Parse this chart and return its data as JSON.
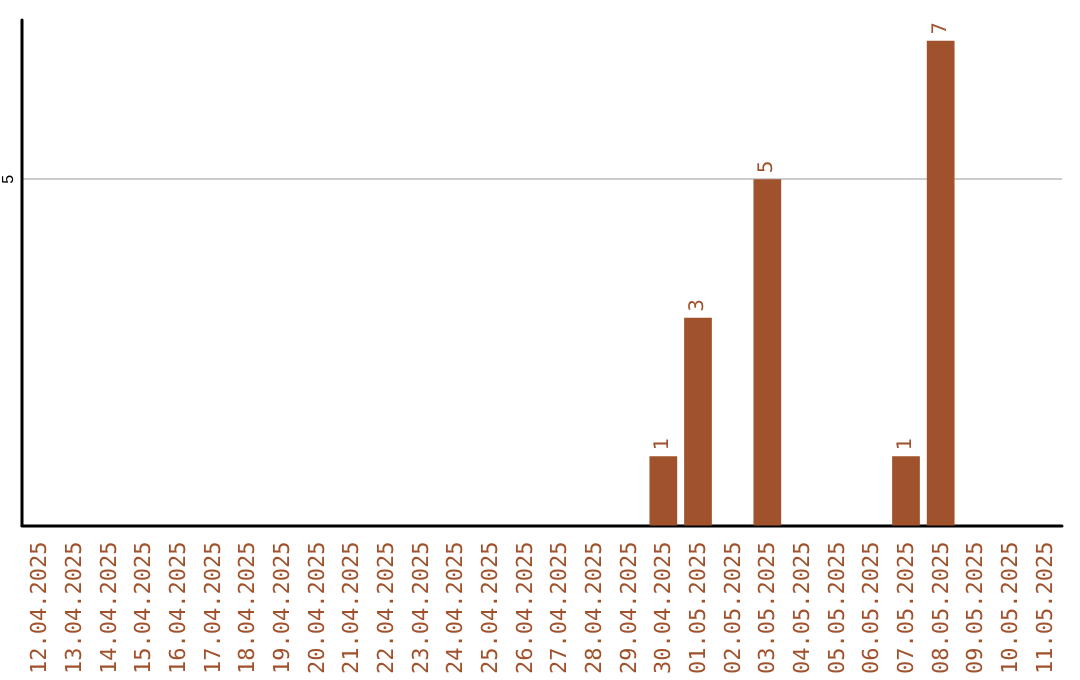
{
  "chart_data": {
    "type": "bar",
    "categories": [
      "12.04.2025",
      "13.04.2025",
      "14.04.2025",
      "15.04.2025",
      "16.04.2025",
      "17.04.2025",
      "18.04.2025",
      "19.04.2025",
      "20.04.2025",
      "21.04.2025",
      "22.04.2025",
      "23.04.2025",
      "24.04.2025",
      "25.04.2025",
      "26.04.2025",
      "27.04.2025",
      "28.04.2025",
      "29.04.2025",
      "30.04.2025",
      "01.05.2025",
      "02.05.2025",
      "03.05.2025",
      "04.05.2025",
      "05.05.2025",
      "06.05.2025",
      "07.05.2025",
      "08.05.2025",
      "09.05.2025",
      "10.05.2025",
      "11.05.2025"
    ],
    "values": [
      null,
      null,
      null,
      null,
      null,
      null,
      null,
      null,
      null,
      null,
      null,
      null,
      null,
      null,
      null,
      null,
      null,
      null,
      1,
      3,
      null,
      5,
      null,
      null,
      null,
      1,
      7,
      null,
      null,
      null
    ],
    "data_labels": true,
    "color": "#a0522d",
    "ylim": [
      0,
      7.3
    ],
    "yticks": [
      5
    ],
    "grid": "y"
  }
}
